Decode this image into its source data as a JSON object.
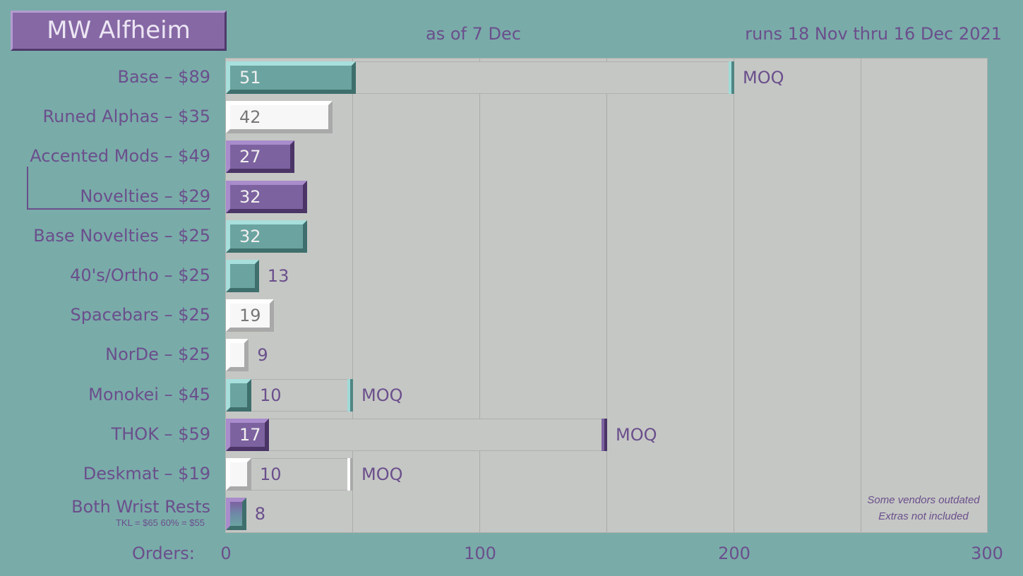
{
  "header": {
    "title": "MW Alfheim",
    "as_of": "as of 7 Dec",
    "runs": "runs 18 Nov thru 16 Dec 2021"
  },
  "notes": [
    "Some vendors outdated",
    "Extras not included"
  ],
  "chart_data": {
    "type": "bar",
    "orientation": "horizontal",
    "xlabel": "Orders:",
    "xlim": [
      0,
      300
    ],
    "x_ticks": [
      0,
      100,
      200,
      300
    ],
    "moq_label": "MOQ",
    "categories": [
      {
        "label": "Base – $89",
        "value": 51,
        "moq": 200,
        "color": "teal"
      },
      {
        "label": "Runed Alphas – $35",
        "value": 42,
        "color": "white"
      },
      {
        "label": "Accented Mods – $49",
        "value": 27,
        "color": "purple"
      },
      {
        "label": "Novelties – $29",
        "value": 32,
        "color": "purple"
      },
      {
        "label": "Base Novelties – $25",
        "value": 32,
        "color": "teal"
      },
      {
        "label": "40's/Ortho – $25",
        "value": 13,
        "color": "teal"
      },
      {
        "label": "Spacebars – $25",
        "value": 19,
        "color": "white"
      },
      {
        "label": "NorDe – $25",
        "value": 9,
        "color": "white"
      },
      {
        "label": "Monokei – $45",
        "value": 10,
        "moq": 50,
        "color": "teal"
      },
      {
        "label": "THOK – $59",
        "value": 17,
        "moq": 150,
        "color": "purple"
      },
      {
        "label": "Deskmat – $19",
        "value": 10,
        "moq": 50,
        "color": "white"
      },
      {
        "label": "Both Wrist Rests",
        "sublabel": "TKL = $65     60% = $55",
        "value": 8,
        "color": "gradient"
      }
    ],
    "colors": {
      "teal": "#6aa3a0",
      "white": "#f7f7f7",
      "purple": "#7d62a0",
      "background": "#79aba9",
      "plot": "#c5c7c4"
    }
  }
}
